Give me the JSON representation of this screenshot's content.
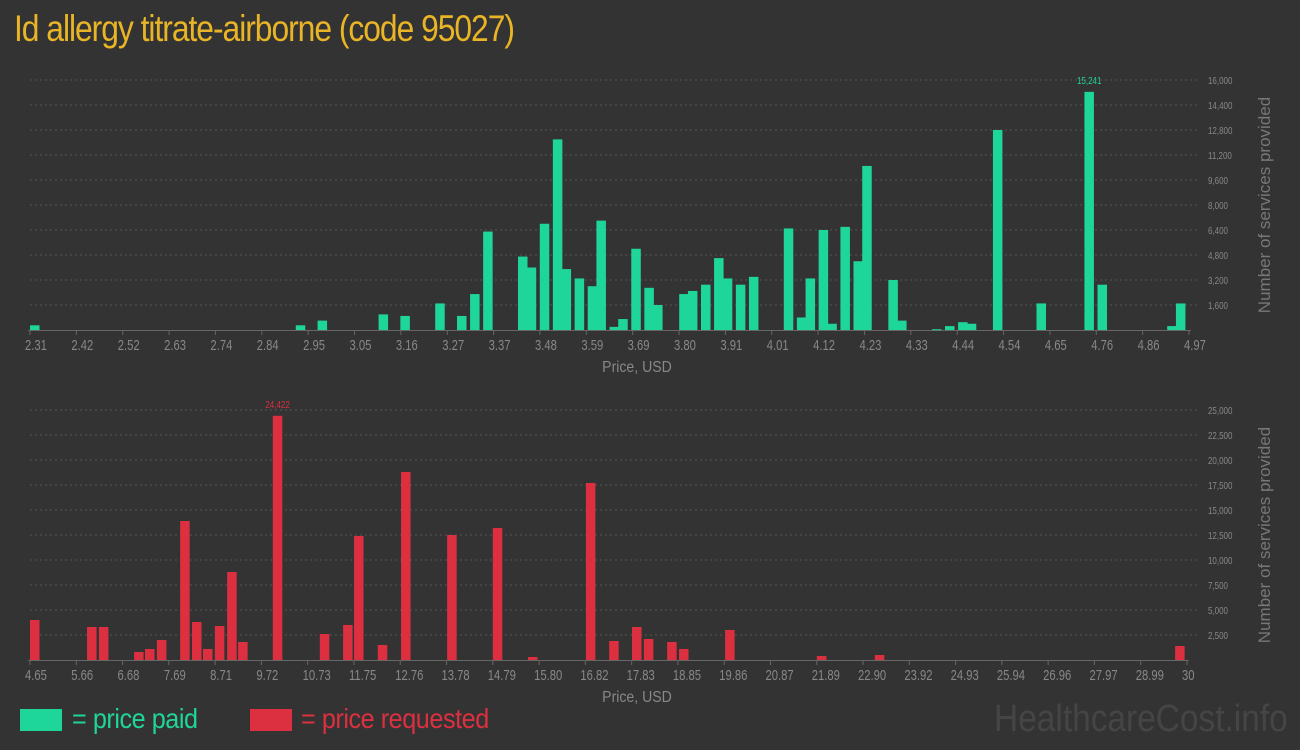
{
  "title": "Id allergy titrate-airborne (code 95027)",
  "legend": {
    "paid": "= price paid",
    "requested": "= price requested"
  },
  "watermark": "HealthcareCost.info",
  "colors": {
    "paid": "#1fd69a",
    "requested": "#dc3040",
    "background": "#333333",
    "title": "#e9b526",
    "axis_text": "#888888"
  },
  "chart_data": [
    {
      "type": "bar",
      "name": "price-paid",
      "xlabel": "Price, USD",
      "ylabel": "Number of services provided",
      "xlim": [
        2.31,
        4.97
      ],
      "ylim": [
        0,
        16000
      ],
      "bin_width": 0.0266,
      "xticks": [
        "2.31",
        "2.42",
        "2.52",
        "2.63",
        "2.74",
        "2.84",
        "2.95",
        "3.05",
        "3.16",
        "3.27",
        "3.37",
        "3.48",
        "3.59",
        "3.69",
        "3.80",
        "3.91",
        "4.01",
        "4.12",
        "4.23",
        "4.33",
        "4.44",
        "4.54",
        "4.65",
        "4.76",
        "4.86",
        "4.97"
      ],
      "yticks": [
        "1,600",
        "3,200",
        "4,800",
        "6,400",
        "8,000",
        "9,600",
        "11,200",
        "12,800",
        "14,400",
        "16,000"
      ],
      "max_label": "15,241",
      "grid": true,
      "x": [
        2.31,
        2.92,
        2.97,
        3.11,
        3.16,
        3.24,
        3.29,
        3.32,
        3.35,
        3.43,
        3.45,
        3.48,
        3.51,
        3.53,
        3.56,
        3.59,
        3.61,
        3.64,
        3.66,
        3.69,
        3.72,
        3.74,
        3.8,
        3.82,
        3.85,
        3.88,
        3.9,
        3.93,
        3.96,
        4.04,
        4.07,
        4.09,
        4.12,
        4.14,
        4.17,
        4.2,
        4.22,
        4.28,
        4.3,
        4.38,
        4.41,
        4.44,
        4.46,
        4.52,
        4.62,
        4.73,
        4.76,
        4.92,
        4.94
      ],
      "values": [
        300,
        300,
        600,
        1000,
        900,
        1700,
        900,
        2300,
        6300,
        4700,
        4000,
        6800,
        12200,
        3900,
        3300,
        2800,
        7000,
        200,
        700,
        5200,
        2700,
        1600,
        2300,
        2500,
        2900,
        4600,
        3300,
        2900,
        3400,
        6500,
        800,
        3300,
        6400,
        400,
        6600,
        4400,
        10500,
        3200,
        600,
        50,
        250,
        500,
        400,
        12800,
        1700,
        15241,
        2900,
        250,
        1700
      ]
    },
    {
      "type": "bar",
      "name": "price-requested",
      "xlabel": "Price, USD",
      "ylabel": "Number of services provided",
      "xlim": [
        4.65,
        30
      ],
      "ylim": [
        0,
        25000
      ],
      "bin_width": 0.254,
      "xticks": [
        "4.65",
        "5.66",
        "6.68",
        "7.69",
        "8.71",
        "9.72",
        "10.73",
        "11.75",
        "12.76",
        "13.78",
        "14.79",
        "15.80",
        "16.82",
        "17.83",
        "18.85",
        "19.86",
        "20.87",
        "21.89",
        "22.90",
        "23.92",
        "24.93",
        "25.94",
        "26.96",
        "27.97",
        "28.99",
        "30"
      ],
      "yticks": [
        "2,500",
        "5,000",
        "7,500",
        "10,000",
        "12,500",
        "15,000",
        "17,500",
        "20,000",
        "22,500",
        "25,000"
      ],
      "max_label": "24,422",
      "grid": true,
      "x": [
        4.65,
        5.9,
        6.16,
        6.93,
        7.17,
        7.43,
        7.94,
        8.2,
        8.44,
        8.7,
        8.97,
        9.21,
        9.97,
        11.0,
        11.51,
        11.75,
        12.27,
        12.78,
        13.79,
        14.79,
        15.56,
        16.83,
        17.34,
        17.84,
        18.1,
        18.61,
        18.87,
        19.88,
        21.89,
        23.16,
        29.74
      ],
      "values": [
        4000,
        3300,
        3300,
        800,
        1100,
        2000,
        13900,
        3800,
        1100,
        3400,
        8800,
        1800,
        24422,
        2600,
        3500,
        12400,
        1500,
        18800,
        12500,
        13200,
        300,
        17700,
        1900,
        3300,
        2100,
        1800,
        1100,
        3000,
        400,
        500,
        1400
      ]
    }
  ]
}
